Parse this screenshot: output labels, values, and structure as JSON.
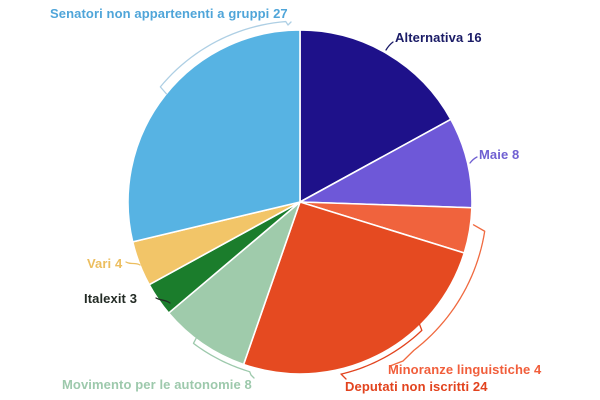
{
  "background_color": "#ffffff",
  "chart_data": {
    "type": "pie",
    "title": "",
    "total": 94,
    "legend": "none (direct callout labels)",
    "start_angle_deg": 0,
    "direction": "clockwise",
    "slices": [
      {
        "label": "Alternativa",
        "value": 16,
        "display": "Alternativa 16",
        "color": "#1E118A",
        "label_color": "#1A1B66",
        "leader_color": "#1A1B66"
      },
      {
        "label": "Maie",
        "value": 8,
        "display": "Maie 8",
        "color": "#6E58D8",
        "label_color": "#7060D2",
        "leader_color": "#7060D2"
      },
      {
        "label": "Minoranze linguistiche",
        "value": 4,
        "display": "Minoranze linguistiche 4",
        "color": "#F0633D",
        "label_color": "#F15E3B",
        "leader_color": "#F0693F"
      },
      {
        "label": "Deputati non iscritti",
        "value": 24,
        "display": "Deputati non iscritti 24",
        "color": "#E54A21",
        "label_color": "#E2431E",
        "leader_color": "#E2431E"
      },
      {
        "label": "Movimento per le autonomie",
        "value": 8,
        "display": "Movimento per le autonomie 8",
        "color": "#9FCBAB",
        "label_color": "#9DC9AC",
        "leader_color": "#9DC9AC"
      },
      {
        "label": "Italexit",
        "value": 3,
        "display": "Italexit 3",
        "color": "#1B7D2C",
        "label_color": "#232B25",
        "leader_color": "#232B25"
      },
      {
        "label": "Vari",
        "value": 4,
        "display": "Vari 4",
        "color": "#F2C568",
        "label_color": "#ECBE5F",
        "leader_color": "#ECBE5F"
      },
      {
        "label": "Senatori non appartenenti a gruppi",
        "value": 27,
        "display": "Senatori non appartenenti a gruppi 27",
        "color": "#57B3E3",
        "label_color": "#4FA5D9",
        "leader_color": "#AECFE4"
      }
    ]
  }
}
